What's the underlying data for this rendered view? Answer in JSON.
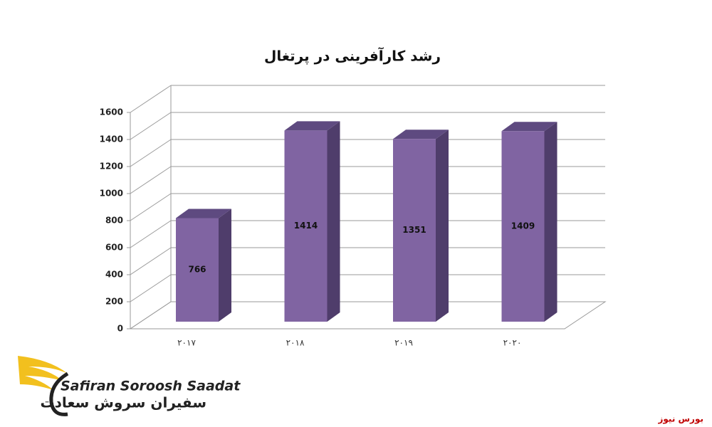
{
  "chart_data": {
    "type": "bar3d",
    "title": "رشد کارآفرینی در پرتغال",
    "categories": [
      "۲۰۱۷",
      "۲۰۱۸",
      "۲۰۱۹",
      "۲۰۲۰"
    ],
    "values": [
      766,
      1414,
      1351,
      1409
    ],
    "color": "#8064a2",
    "ylim": [
      0,
      1600
    ],
    "yticks": [
      0,
      200,
      400,
      600,
      800,
      1000,
      1200,
      1400,
      1600
    ],
    "grid": true
  },
  "branding": {
    "logo_latin": "Safiran Soroosh Saadat",
    "logo_persian": "سفیران سروش سعادت",
    "source": "بورس نیوز"
  }
}
